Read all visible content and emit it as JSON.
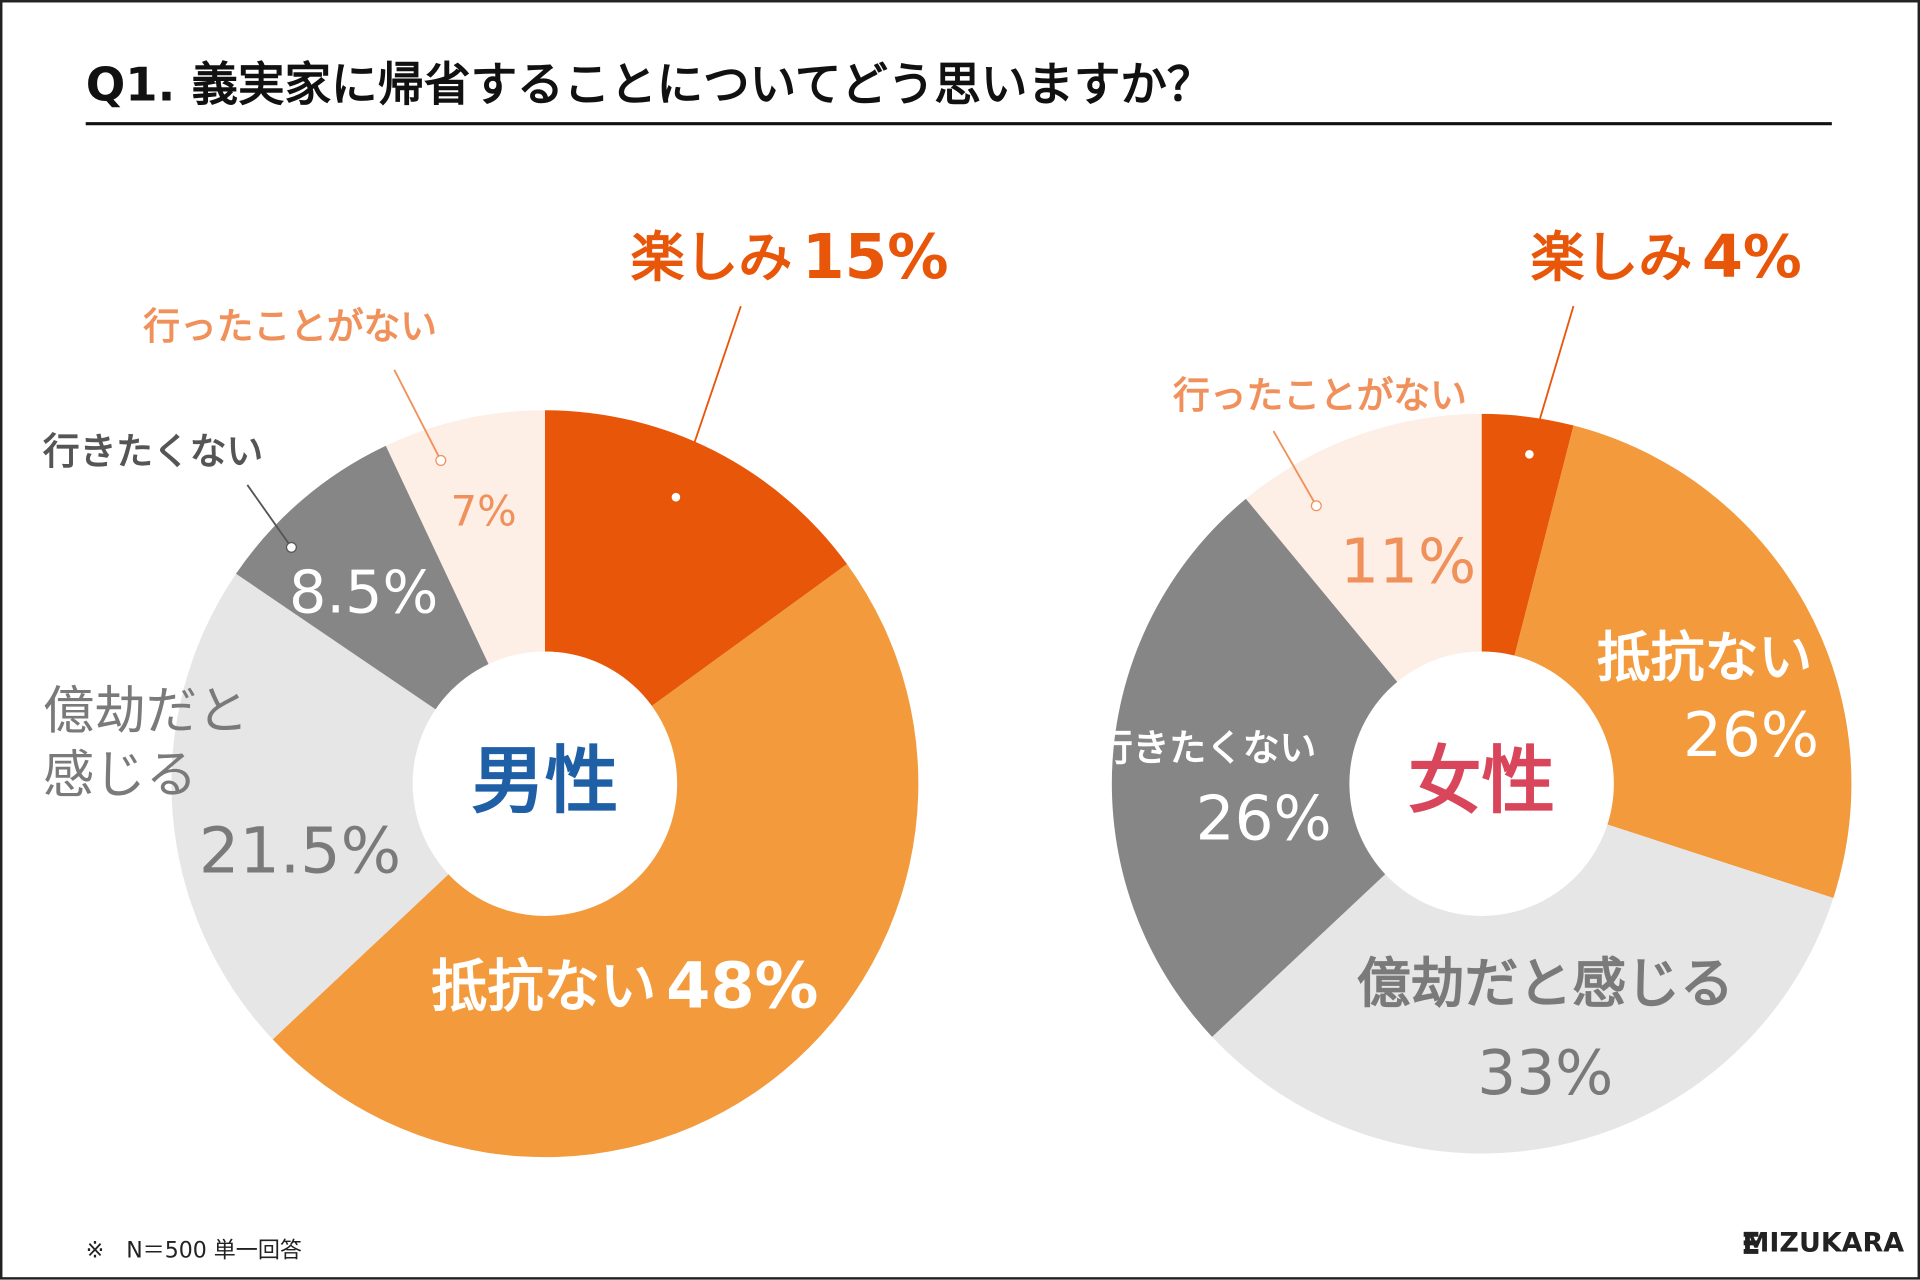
{
  "title": "Q1. 義実家に帰省することについてどう思いますか？",
  "note": "※　N＝500 単一回答",
  "logo": "MIZUKARA",
  "chart_data": [
    {
      "type": "donut",
      "center_label": "男性",
      "center_color": "#1f5fa6",
      "categories": [
        "楽しみ",
        "抵抗ない",
        "億劫だと感じる",
        "行きたくない",
        "行ったことがない"
      ],
      "values": [
        15,
        48,
        21.5,
        8.5,
        7
      ],
      "value_labels": [
        "15%",
        "48%",
        "21.5%",
        "8.5%",
        "7%"
      ],
      "colors": [
        "#e8560a",
        "#f39a3c",
        "#e6e6e6",
        "#868686",
        "#fdeee6"
      ]
    },
    {
      "type": "donut",
      "center_label": "女性",
      "center_color": "#d9455a",
      "categories": [
        "楽しみ",
        "抵抗ない",
        "億劫だと感じる",
        "行きたくない",
        "行ったことがない"
      ],
      "values": [
        4,
        26,
        33,
        26,
        11
      ],
      "value_labels": [
        "4%",
        "26%",
        "33%",
        "26%",
        "11%"
      ],
      "colors": [
        "#e8560a",
        "#f39a3c",
        "#e6e6e6",
        "#868686",
        "#fdeee6"
      ]
    }
  ]
}
